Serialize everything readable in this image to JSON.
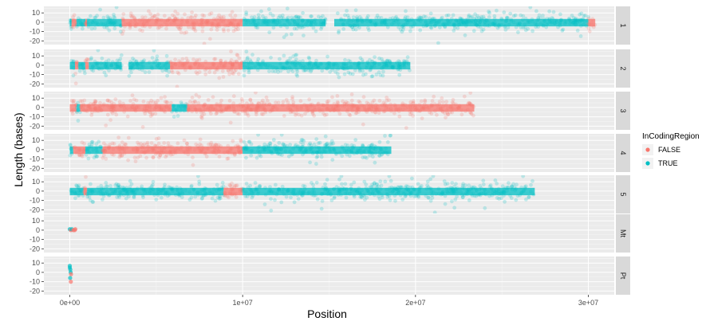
{
  "chart_data": {
    "type": "scatter",
    "xlabel": "Position",
    "ylabel": "Length (bases)",
    "x_ticks": [
      0,
      10000000,
      20000000,
      30000000
    ],
    "x_tick_labels": [
      "0e+00",
      "1e+07",
      "2e+07",
      "3e+07"
    ],
    "y_ticks": [
      -20,
      -10,
      0,
      10
    ],
    "y_tick_labels": [
      "-20",
      "-10",
      "0",
      "10"
    ],
    "xlim": [
      -1500000,
      31500000
    ],
    "ylim": [
      -24,
      17
    ],
    "legend": {
      "title": "InCodingRegion",
      "position": "right",
      "entries": [
        {
          "label": "FALSE",
          "color": "#F8766D"
        },
        {
          "label": "TRUE",
          "color": "#00BFC4"
        }
      ]
    },
    "colors": {
      "FALSE": "#F8766D",
      "TRUE": "#00BFC4",
      "panel_bg": "#EBEBEB",
      "strip_bg": "#D9D9D9"
    },
    "facets": [
      {
        "label": "1",
        "segments": [
          {
            "from": 0,
            "to": 100000,
            "group": "TRUE"
          },
          {
            "from": 100000,
            "to": 400000,
            "group": "FALSE"
          },
          {
            "from": 400000,
            "to": 900000,
            "group": "TRUE"
          },
          {
            "from": 900000,
            "to": 1000000,
            "group": "FALSE"
          },
          {
            "from": 1000000,
            "to": 3000000,
            "group": "TRUE"
          },
          {
            "from": 3000000,
            "to": 10000000,
            "group": "FALSE"
          },
          {
            "from": 10000000,
            "to": 14800000,
            "group": "TRUE"
          },
          {
            "from": 15300000,
            "to": 30000000,
            "group": "TRUE"
          },
          {
            "from": 30000000,
            "to": 30400000,
            "group": "FALSE"
          }
        ]
      },
      {
        "label": "2",
        "segments": [
          {
            "from": 0,
            "to": 300000,
            "group": "TRUE"
          },
          {
            "from": 300000,
            "to": 500000,
            "group": "FALSE"
          },
          {
            "from": 500000,
            "to": 900000,
            "group": "TRUE"
          },
          {
            "from": 900000,
            "to": 1100000,
            "group": "FALSE"
          },
          {
            "from": 1100000,
            "to": 3000000,
            "group": "TRUE"
          },
          {
            "from": 3400000,
            "to": 5800000,
            "group": "TRUE"
          },
          {
            "from": 5800000,
            "to": 10000000,
            "group": "FALSE"
          },
          {
            "from": 10000000,
            "to": 19700000,
            "group": "TRUE"
          }
        ]
      },
      {
        "label": "3",
        "segments": [
          {
            "from": 0,
            "to": 400000,
            "group": "FALSE"
          },
          {
            "from": 400000,
            "to": 600000,
            "group": "TRUE"
          },
          {
            "from": 600000,
            "to": 5900000,
            "group": "FALSE"
          },
          {
            "from": 5900000,
            "to": 6800000,
            "group": "TRUE"
          },
          {
            "from": 6800000,
            "to": 23400000,
            "group": "FALSE"
          }
        ]
      },
      {
        "label": "4",
        "segments": [
          {
            "from": 0,
            "to": 200000,
            "group": "TRUE"
          },
          {
            "from": 200000,
            "to": 900000,
            "group": "FALSE"
          },
          {
            "from": 900000,
            "to": 1900000,
            "group": "TRUE"
          },
          {
            "from": 1900000,
            "to": 10000000,
            "group": "FALSE"
          },
          {
            "from": 10000000,
            "to": 18600000,
            "group": "TRUE"
          }
        ]
      },
      {
        "label": "5",
        "segments": [
          {
            "from": 0,
            "to": 800000,
            "group": "TRUE"
          },
          {
            "from": 800000,
            "to": 1000000,
            "group": "FALSE"
          },
          {
            "from": 1000000,
            "to": 8900000,
            "group": "TRUE"
          },
          {
            "from": 8900000,
            "to": 10000000,
            "group": "FALSE"
          },
          {
            "from": 10000000,
            "to": 26900000,
            "group": "TRUE"
          }
        ]
      },
      {
        "label": "Mt",
        "points": [
          {
            "x": 0,
            "y": 1,
            "group": "TRUE"
          },
          {
            "x": 60000,
            "y": 0,
            "group": "FALSE"
          },
          {
            "x": 120000,
            "y": 1,
            "group": "TRUE"
          },
          {
            "x": 200000,
            "y": 0,
            "group": "FALSE"
          },
          {
            "x": 280000,
            "y": 0,
            "group": "FALSE"
          },
          {
            "x": 320000,
            "y": 1,
            "group": "FALSE"
          }
        ]
      },
      {
        "label": "Pt",
        "points": [
          {
            "x": 0,
            "y": 7,
            "group": "TRUE"
          },
          {
            "x": 0,
            "y": 5,
            "group": "TRUE"
          },
          {
            "x": 30000,
            "y": 3,
            "group": "TRUE"
          },
          {
            "x": 50000,
            "y": 0,
            "group": "TRUE"
          },
          {
            "x": 70000,
            "y": -2,
            "group": "FALSE"
          },
          {
            "x": 20000,
            "y": -6,
            "group": "TRUE"
          },
          {
            "x": 60000,
            "y": -10,
            "group": "FALSE"
          }
        ]
      }
    ]
  }
}
